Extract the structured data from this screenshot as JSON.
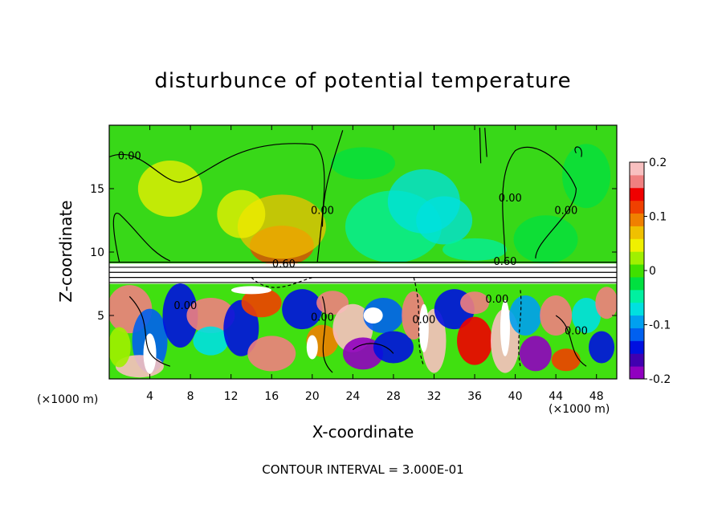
{
  "chart_data": {
    "type": "heatmap",
    "title": "disturbunce of potential temperature",
    "xlabel": "X-coordinate",
    "ylabel": "Z-coordinate",
    "x_unit_label": "(×1000 m)",
    "x_unit_label_right": "(×1000 m)",
    "xlim": [
      0,
      50
    ],
    "ylim": [
      0,
      20
    ],
    "x_ticks": [
      4,
      8,
      12,
      16,
      20,
      24,
      28,
      32,
      36,
      40,
      44,
      48
    ],
    "y_ticks": [
      5,
      10,
      15
    ],
    "colorbar": {
      "range": [
        -0.2,
        0.2
      ],
      "tick_labels": [
        "0.2",
        "0.1",
        "0",
        "-0.1",
        "-0.2"
      ],
      "tick_values": [
        0.2,
        0.1,
        0,
        -0.1,
        -0.2
      ],
      "colors": [
        "#9000c0",
        "#4000b0",
        "#0010e0",
        "#0060f0",
        "#00a0f0",
        "#00e0e0",
        "#00f0a0",
        "#00e040",
        "#40e000",
        "#a0f000",
        "#f0f000",
        "#f0c000",
        "#f08000",
        "#f04000",
        "#f00000",
        "#f08080",
        "#f8c0c0"
      ]
    },
    "contour_labels": [
      {
        "x": 2.0,
        "z": 17.3,
        "text": "0.00"
      },
      {
        "x": 21.0,
        "z": 13.0,
        "text": "0.00"
      },
      {
        "x": 39.5,
        "z": 14.0,
        "text": "0.00"
      },
      {
        "x": 45.0,
        "z": 13.0,
        "text": "0.00"
      },
      {
        "x": 17.2,
        "z": 8.8,
        "text": "0.60"
      },
      {
        "x": 39.0,
        "z": 9.0,
        "text": "0.60"
      },
      {
        "x": 7.5,
        "z": 5.5,
        "text": "0.00"
      },
      {
        "x": 21.0,
        "z": 4.6,
        "text": "0.00"
      },
      {
        "x": 31.0,
        "z": 4.4,
        "text": "0.00"
      },
      {
        "x": 38.2,
        "z": 6.0,
        "text": "0.00"
      },
      {
        "x": 46.0,
        "z": 3.5,
        "text": "0.00"
      }
    ],
    "contour_interval_text": "CONTOUR INTERVAL = 3.000E-01"
  }
}
